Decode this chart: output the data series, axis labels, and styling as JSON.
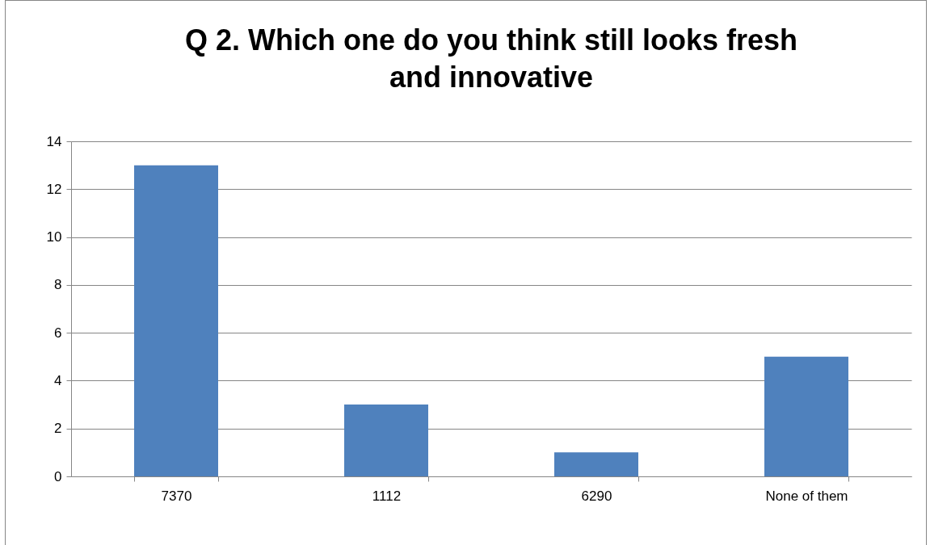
{
  "chart_data": {
    "type": "bar",
    "title": "Q 2. Which one do you think still looks fresh and innovative",
    "categories": [
      "7370",
      "1112",
      "6290",
      "None of them"
    ],
    "values": [
      13,
      3,
      1,
      5
    ],
    "color": "#4f81bd",
    "ylim": [
      0,
      14
    ],
    "yticks": [
      0,
      2,
      4,
      6,
      8,
      10,
      12,
      14
    ],
    "grid": "y"
  }
}
